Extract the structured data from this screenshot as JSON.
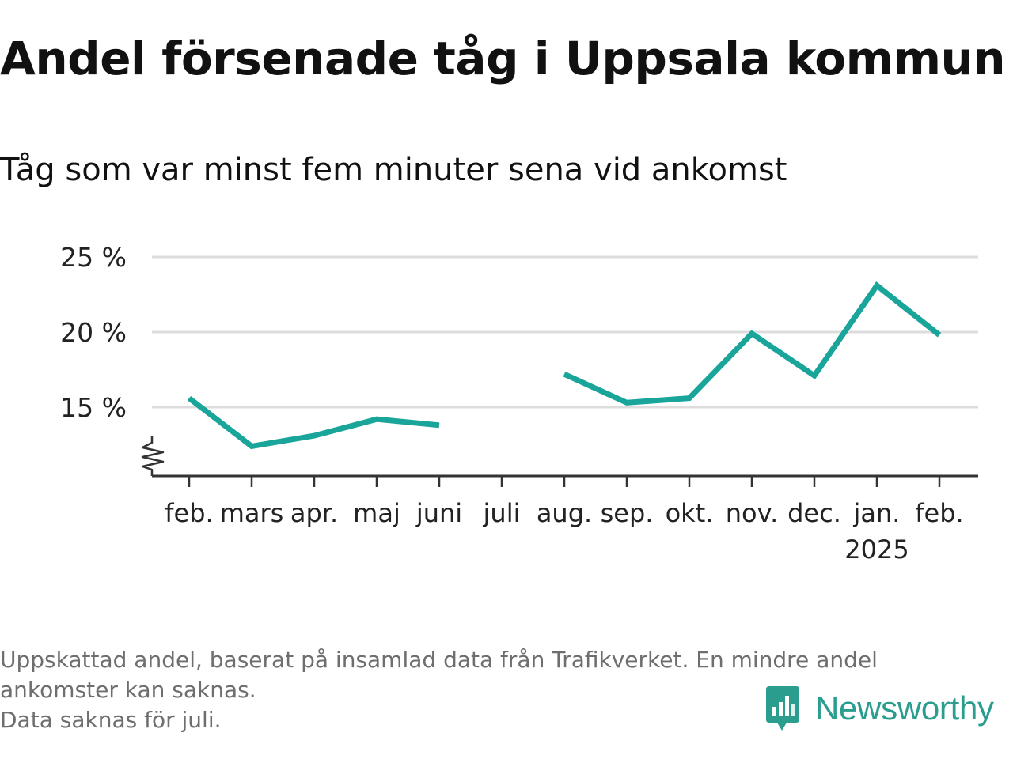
{
  "title": "Andel försenade tåg i Uppsala kommun",
  "subtitle": "Tåg som var minst fem minuter sena vid ankomst",
  "notes": [
    "Uppskattad andel, baserat på insamlad data från Trafikverket. En mindre andel",
    "ankomster kan saknas.",
    "Data saknas för juli."
  ],
  "brand": {
    "name": "Newsworthy",
    "color": "#2a9d8f"
  },
  "chart_data": {
    "type": "line",
    "categories": [
      "feb.",
      "mars",
      "apr.",
      "maj",
      "juni",
      "juli",
      "aug.",
      "sep.",
      "okt.",
      "nov.",
      "dec.",
      "jan.",
      "feb."
    ],
    "year_label": "2025",
    "year_label_index": 11,
    "series": [
      {
        "values": [
          15.6,
          12.4,
          13.1,
          14.2,
          13.8,
          null,
          17.2,
          15.3,
          15.6,
          19.9,
          17.1,
          23.1,
          19.8
        ],
        "color": "#1aa59a"
      }
    ],
    "ylim": [
      11,
      26
    ],
    "yticks": [
      15,
      20,
      25
    ],
    "ytick_labels": [
      "15 %",
      "20 %",
      "25 %"
    ],
    "axis_break": true,
    "grid": "horizontal"
  }
}
